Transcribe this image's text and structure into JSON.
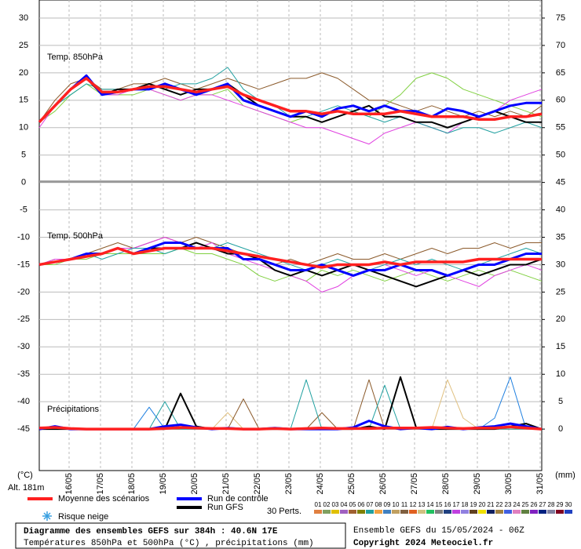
{
  "chart_data": {
    "type": "line",
    "y_unit_label": "(°C)",
    "y2_unit_label": "(mm)",
    "altitude": "Alt. 181m",
    "categories": [
      "16/05",
      "17/05",
      "18/05",
      "19/05",
      "20/05",
      "21/05",
      "22/05",
      "23/05",
      "24/05",
      "25/05",
      "26/05",
      "27/05",
      "28/05",
      "29/05",
      "30/05",
      "31/05"
    ],
    "ylim": [
      -52.57,
      33.29
    ],
    "yticks": [
      30,
      25,
      20,
      15,
      10,
      5,
      0,
      -5,
      -10,
      -15,
      -20,
      -25,
      -30,
      -35,
      -40,
      -45
    ],
    "y2lim": [
      -7.57,
      78.29
    ],
    "y2ticks": [
      75,
      70,
      65,
      60,
      55,
      50,
      45,
      40,
      35,
      30,
      25,
      20,
      15,
      10,
      5,
      0
    ],
    "grid": true,
    "panels": [
      {
        "label": "Temp. 850hPa",
        "series": [
          {
            "color": "#8b5a2b",
            "width": 1,
            "values": [
              11,
              15,
              18,
              19,
              17,
              17,
              18,
              18,
              19,
              18,
              17,
              18,
              19,
              18,
              17,
              18,
              19,
              19,
              20,
              19,
              17,
              15,
              15,
              14,
              13,
              14,
              13,
              12,
              13,
              12,
              13,
              12,
              14
            ]
          },
          {
            "color": "#80d040",
            "width": 1,
            "values": [
              11,
              13,
              16,
              18,
              16,
              16,
              16,
              17,
              16,
              15,
              16,
              16,
              17,
              14,
              13,
              12,
              11,
              12,
              11,
              12,
              13,
              12,
              14,
              16,
              19,
              20,
              19,
              17,
              16,
              15,
              14,
              13,
              12
            ]
          },
          {
            "color": "#e040e0",
            "width": 1,
            "values": [
              10,
              14,
              17,
              19,
              16,
              16,
              17,
              17,
              16,
              15,
              16,
              16,
              15,
              14,
              13,
              12,
              11,
              10,
              10,
              9,
              8,
              7,
              9,
              10,
              11,
              10,
              9,
              11,
              12,
              13,
              15,
              16,
              17
            ]
          },
          {
            "color": "#20a0a0",
            "width": 1,
            "values": [
              11,
              14,
              16,
              18,
              17,
              17,
              17,
              18,
              17,
              18,
              18,
              19,
              21,
              17,
              15,
              14,
              12,
              12,
              13,
              14,
              13,
              12,
              11,
              12,
              11,
              10,
              9,
              10,
              10,
              9,
              10,
              11,
              10
            ]
          },
          {
            "color": "#000000",
            "width": 2,
            "values": [
              11,
              14,
              17,
              19,
              16,
              17,
              17,
              18,
              17,
              16,
              17,
              17,
              18,
              16,
              14,
              13,
              12,
              12,
              11,
              12,
              13,
              14,
              12,
              12,
              11,
              11,
              10,
              11,
              12,
              13,
              12,
              11,
              11
            ]
          },
          {
            "color": "#0000ff",
            "width": 3,
            "values": [
              11,
              14,
              17,
              19.5,
              16,
              16.5,
              17,
              17,
              18,
              17,
              16,
              17,
              18,
              15,
              14,
              13,
              12,
              13,
              12,
              13.5,
              14,
              13,
              14,
              13,
              13,
              12,
              13.5,
              13,
              12,
              13,
              14,
              14.5,
              14.5
            ]
          },
          {
            "color": "#ff2020",
            "width": 3.5,
            "values": [
              11,
              14,
              17,
              19,
              16.5,
              16.5,
              17,
              17.5,
              17.5,
              17,
              16.5,
              17,
              17.5,
              16,
              15,
              14,
              13,
              13,
              12.5,
              13,
              12.5,
              12.5,
              12.5,
              13,
              12.5,
              12,
              12,
              12,
              11.5,
              11.5,
              12,
              12,
              12.5
            ]
          }
        ]
      },
      {
        "label": "Temp. 500hPa",
        "series": [
          {
            "color": "#8b5a2b",
            "width": 1,
            "values": [
              -15,
              -14,
              -14,
              -13,
              -12,
              -11,
              -12,
              -11,
              -10,
              -11,
              -10,
              -11,
              -12,
              -13,
              -14,
              -15,
              -14,
              -15,
              -14,
              -13,
              -14,
              -14,
              -13,
              -14,
              -13,
              -12,
              -13,
              -12,
              -12,
              -11,
              -12,
              -11,
              -11
            ]
          },
          {
            "color": "#80d040",
            "width": 1,
            "values": [
              -15,
              -15,
              -14,
              -14,
              -13,
              -13,
              -13,
              -13,
              -13,
              -12,
              -13,
              -13,
              -14,
              -15,
              -17,
              -18,
              -17,
              -18,
              -16,
              -17,
              -16,
              -17,
              -18,
              -17,
              -16,
              -17,
              -18,
              -17,
              -16,
              -17,
              -16,
              -17,
              -18
            ]
          },
          {
            "color": "#e040e0",
            "width": 1,
            "values": [
              -15,
              -14,
              -14,
              -13,
              -13,
              -12,
              -12,
              -11,
              -10,
              -11,
              -12,
              -11,
              -13,
              -14,
              -15,
              -16,
              -17,
              -18,
              -20,
              -19,
              -17,
              -16,
              -15,
              -16,
              -17,
              -16,
              -17,
              -18,
              -19,
              -17,
              -16,
              -15,
              -16
            ]
          },
          {
            "color": "#20a0a0",
            "width": 1,
            "values": [
              -15,
              -14.5,
              -14,
              -13,
              -14,
              -13,
              -12,
              -12,
              -13,
              -12,
              -12,
              -12,
              -11,
              -12,
              -13,
              -14,
              -15,
              -16,
              -15,
              -14,
              -15,
              -16,
              -15,
              -14,
              -15,
              -14,
              -15,
              -16,
              -15,
              -14,
              -13,
              -12,
              -13
            ]
          },
          {
            "color": "#000000",
            "width": 2,
            "values": [
              -15,
              -14.5,
              -14,
              -13,
              -13,
              -12,
              -13,
              -12,
              -12,
              -12,
              -11,
              -12,
              -13,
              -13,
              -14,
              -16,
              -17,
              -16,
              -17,
              -16,
              -15,
              -16,
              -17,
              -18,
              -19,
              -18,
              -17,
              -16,
              -17,
              -16,
              -15,
              -15,
              -14
            ]
          },
          {
            "color": "#0000ff",
            "width": 3,
            "values": [
              -15,
              -14.5,
              -14,
              -13,
              -13,
              -12,
              -13,
              -12,
              -11,
              -11,
              -12,
              -12,
              -12,
              -14,
              -14,
              -15,
              -16,
              -16,
              -15,
              -16,
              -17,
              -16,
              -16,
              -15,
              -16,
              -16,
              -17,
              -16,
              -15,
              -15,
              -14,
              -13,
              -13
            ]
          },
          {
            "color": "#ff2020",
            "width": 3.5,
            "values": [
              -15,
              -14.5,
              -14,
              -13.5,
              -13,
              -12,
              -13,
              -12.5,
              -12,
              -12,
              -12,
              -12,
              -12.5,
              -13,
              -13.5,
              -14,
              -14.5,
              -15,
              -15.5,
              -15,
              -15,
              -15,
              -14.5,
              -15,
              -14.5,
              -14.5,
              -14.5,
              -14.5,
              -14,
              -14,
              -14,
              -14,
              -14
            ]
          }
        ]
      },
      {
        "label": "Précipitations",
        "axis": "y2",
        "series": [
          {
            "color": "#e0c080",
            "width": 1,
            "values": [
              0,
              0,
              0,
              0,
              0,
              0,
              0,
              0,
              0,
              0,
              0,
              0,
              3,
              0,
              0,
              0,
              0,
              0,
              0,
              0,
              0,
              0,
              0,
              0,
              0,
              0,
              9,
              2,
              0,
              0,
              0,
              0,
              0
            ]
          },
          {
            "color": "#2080e0",
            "width": 1,
            "values": [
              0,
              0,
              0,
              0,
              0,
              0,
              0,
              4,
              0,
              0,
              0,
              0,
              0,
              0,
              0,
              0,
              0,
              0,
              0,
              0,
              0,
              0,
              0,
              0,
              0,
              0,
              0,
              0,
              0,
              2,
              9.5,
              0,
              0
            ]
          },
          {
            "color": "#8b5a2b",
            "width": 1,
            "values": [
              0,
              0,
              0,
              0,
              0,
              0,
              0,
              0,
              0,
              0,
              0,
              0,
              0,
              5.5,
              0,
              0,
              0,
              0,
              3,
              0,
              0,
              9,
              0,
              0,
              0,
              0,
              0,
              0,
              0,
              0,
              0,
              0,
              0
            ]
          },
          {
            "color": "#20a0a0",
            "width": 1,
            "values": [
              0,
              0,
              0,
              0,
              0,
              0,
              0,
              0,
              5,
              0,
              0,
              0,
              0,
              0,
              0,
              0,
              0,
              9,
              0,
              0,
              0,
              0,
              8,
              0,
              0,
              0,
              0,
              0,
              0,
              0,
              0,
              0,
              0
            ]
          },
          {
            "color": "#000000",
            "width": 2,
            "values": [
              0,
              0,
              0,
              0,
              0,
              0,
              0,
              0,
              0,
              6.5,
              0.5,
              0,
              0.2,
              0,
              0,
              0,
              0,
              0,
              0,
              0,
              0,
              0.5,
              0,
              9.5,
              0.3,
              0,
              0,
              0,
              0,
              0,
              0.5,
              1,
              0
            ]
          },
          {
            "color": "#0000ff",
            "width": 3,
            "values": [
              0,
              0.5,
              0,
              0,
              0,
              0,
              0,
              0,
              0.5,
              0.8,
              0.3,
              0,
              0.2,
              0,
              0,
              0.2,
              0,
              0,
              0,
              0,
              0.3,
              1.5,
              0.5,
              0,
              0.2,
              0,
              0.4,
              0,
              0.3,
              0.5,
              1,
              0.5,
              0
            ]
          },
          {
            "color": "#ff2020",
            "width": 3.5,
            "values": [
              0.2,
              0.3,
              0.1,
              0,
              0,
              0,
              0,
              0,
              0.1,
              0.3,
              0.2,
              0.1,
              0.1,
              0,
              0,
              0.1,
              0,
              0.1,
              0.2,
              0.1,
              0.1,
              0.1,
              0.2,
              0.2,
              0.2,
              0.3,
              0.2,
              0.1,
              0.2,
              0.2,
              0.4,
              0.2,
              0
            ]
          }
        ]
      }
    ],
    "legend": [
      {
        "name": "Moyenne des scénarios",
        "color": "#ff2020"
      },
      {
        "name": "Run de contrôle",
        "color": "#0000ff"
      },
      {
        "name": "Run GFS",
        "color": "#000000"
      }
    ],
    "snow_label": "Risque neige",
    "members_label": "30 Perts.",
    "members": [
      {
        "label": "01",
        "color": "#e08040"
      },
      {
        "label": "02",
        "color": "#80a060"
      },
      {
        "label": "03",
        "color": "#e0c000"
      },
      {
        "label": "04",
        "color": "#a060c0"
      },
      {
        "label": "05",
        "color": "#a06030"
      },
      {
        "label": "06",
        "color": "#808000"
      },
      {
        "label": "07",
        "color": "#20a0a0"
      },
      {
        "label": "08",
        "color": "#f0a040"
      },
      {
        "label": "09",
        "color": "#4080c0"
      },
      {
        "label": "10",
        "color": "#c0a060"
      },
      {
        "label": "11",
        "color": "#806040"
      },
      {
        "label": "12",
        "color": "#e06020"
      },
      {
        "label": "13",
        "color": "#d0c080"
      },
      {
        "label": "14",
        "color": "#20c060"
      },
      {
        "label": "15",
        "color": "#808080"
      },
      {
        "label": "16",
        "color": "#204080"
      },
      {
        "label": "17",
        "color": "#c040e0"
      },
      {
        "label": "18",
        "color": "#9080e0"
      },
      {
        "label": "19",
        "color": "#604020"
      },
      {
        "label": "20",
        "color": "#f0e000"
      },
      {
        "label": "21",
        "color": "#102060"
      },
      {
        "label": "22",
        "color": "#a08040"
      },
      {
        "label": "23",
        "color": "#4060e0"
      },
      {
        "label": "24",
        "color": "#e080c0"
      },
      {
        "label": "25",
        "color": "#608040"
      },
      {
        "label": "26",
        "color": "#8020c0"
      },
      {
        "label": "27",
        "color": "#002080"
      },
      {
        "label": "28",
        "color": "#8080a0"
      },
      {
        "label": "29",
        "color": "#800020"
      },
      {
        "label": "30",
        "color": "#2040c0"
      }
    ],
    "title": "Diagramme des ensembles GEFS sur 384h : 40.6N 17E",
    "subtitle": "Températures 850hPa et 500hPa (°C) , précipitations (mm)",
    "run_info": "Ensemble GEFS du 15/05/2024 - 06Z",
    "copyright": "Copyright 2024 Meteociel.fr"
  }
}
